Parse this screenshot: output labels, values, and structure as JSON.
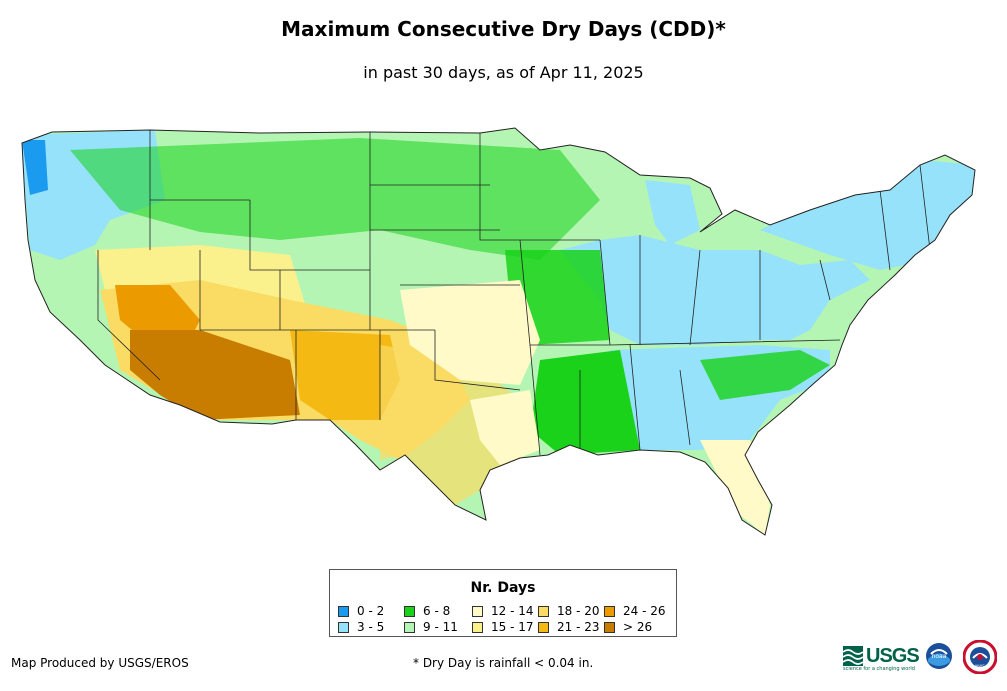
{
  "title": "Maximum Consecutive Dry Days (CDD)*",
  "subtitle": "in past 30 days, as of Apr 11, 2025",
  "map": {
    "region": "Contiguous United States"
  },
  "legend": {
    "title": "Nr. Days",
    "items": [
      {
        "label": "0 - 2",
        "color": "#1a9bf0"
      },
      {
        "label": "3 - 5",
        "color": "#96e2fa"
      },
      {
        "label": "6 - 8",
        "color": "#19d219"
      },
      {
        "label": "9 - 11",
        "color": "#b4f5b4"
      },
      {
        "label": "12 - 14",
        "color": "#fffac8"
      },
      {
        "label": "15 - 17",
        "color": "#faf08c"
      },
      {
        "label": "18 - 20",
        "color": "#fadc64"
      },
      {
        "label": "21 - 23",
        "color": "#f5b914"
      },
      {
        "label": "24 - 26",
        "color": "#eb9b00"
      },
      {
        "label": "> 26",
        "color": "#c87d00"
      }
    ]
  },
  "credit": "Map Produced by USGS/EROS",
  "footnote": "* Dry Day is rainfall < 0.04 in.",
  "logos": {
    "usgs": "USGS",
    "usgs_tagline": "science for a changing world",
    "noaa": "noaa",
    "nws": "NWS"
  }
}
